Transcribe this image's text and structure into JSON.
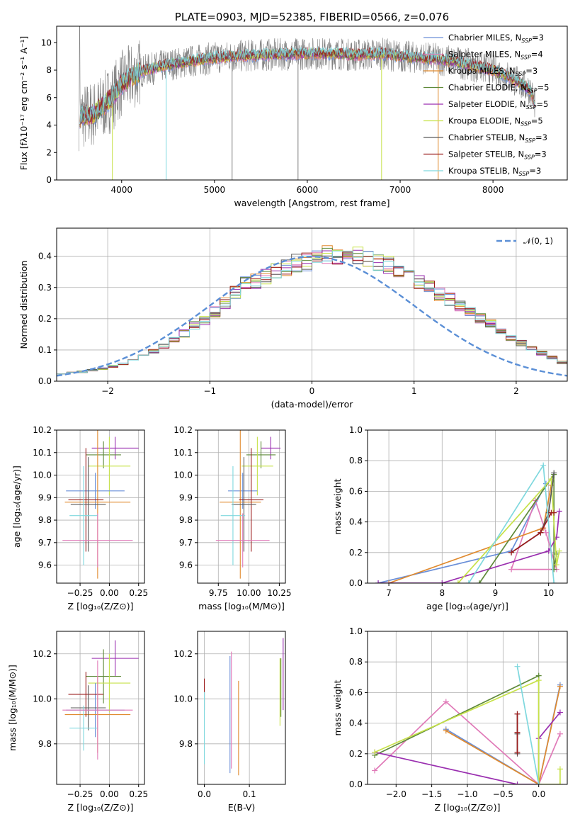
{
  "colors": {
    "Chabrier MILES": "#6a8fd8",
    "Salpeter MILES": "#e07ab8",
    "Kroupa MILES": "#e08a2e",
    "Chabrier ELODIE": "#5f8a3a",
    "Salpeter ELODIE": "#9a2fb0",
    "Kroupa ELODIE": "#c7e24a",
    "Chabrier STELIB": "#5a5a5a",
    "Salpeter STELIB": "#9b1c1c",
    "Kroupa STELIB": "#7fd8de",
    "data": "#808080",
    "normal": "#5b8fd6"
  },
  "chart_data": [
    {
      "type": "line",
      "title": "PLATE=0903, MJD=52385, FIBERID=0566, z=0.076",
      "xlabel": "wavelength [Angstrom, rest frame]",
      "ylabel": "Flux [fλ10⁻¹⁷ erg cm⁻² s⁻¹ A⁻¹]",
      "xlim": [
        3300,
        8800
      ],
      "ylim": [
        0,
        11.2
      ],
      "xticks": [
        4000,
        5000,
        6000,
        7000,
        8000
      ],
      "yticks": [
        0,
        2,
        4,
        6,
        8,
        10
      ],
      "grid": false,
      "legend_position": "right",
      "legend": [
        {
          "label": "Chabrier MILES, N",
          "sub": "SSP",
          "tail": "=3"
        },
        {
          "label": "Salpeter MILES, N",
          "sub": "SSP",
          "tail": "=4"
        },
        {
          "label": "Kroupa MILES, N",
          "sub": "SSP",
          "tail": "=3"
        },
        {
          "label": "Chabrier ELODIE, N",
          "sub": "SSP",
          "tail": "=5"
        },
        {
          "label": "Salpeter ELODIE, N",
          "sub": "SSP",
          "tail": "=5"
        },
        {
          "label": "Kroupa ELODIE, N",
          "sub": "SSP",
          "tail": "=5"
        },
        {
          "label": "Chabrier STELIB, N",
          "sub": "SSP",
          "tail": "=3"
        },
        {
          "label": "Salpeter STELIB, N",
          "sub": "SSP",
          "tail": "=3"
        },
        {
          "label": "Kroupa STELIB, N",
          "sub": "SSP",
          "tail": "=3"
        }
      ],
      "continuum": {
        "x": [
          3550,
          3700,
          3800,
          3900,
          4000,
          4200,
          4500,
          4800,
          5000,
          5200,
          5500,
          6000,
          6300,
          6500,
          6800,
          7000,
          7200,
          7400,
          7600,
          7800,
          8000,
          8200,
          8400,
          8450
        ],
        "y": [
          4.6,
          4.8,
          5.4,
          6.0,
          7.0,
          7.9,
          8.4,
          8.7,
          8.9,
          9.0,
          9.1,
          9.2,
          9.2,
          9.1,
          9.2,
          9.0,
          8.9,
          8.8,
          8.6,
          8.3,
          8.0,
          7.4,
          6.6,
          5.6
        ]
      }
    },
    {
      "type": "bar",
      "subtype": "step histogram",
      "xlabel": "(data-model)/error",
      "ylabel": "Normed distribution",
      "xlim": [
        -2.5,
        2.5
      ],
      "ylim": [
        0,
        0.49
      ],
      "xticks": [
        -2,
        -1,
        0,
        1,
        2
      ],
      "yticks": [
        0.0,
        0.1,
        0.2,
        0.3,
        0.4
      ],
      "grid": true,
      "legend_position": "top-right",
      "legend": [
        "𝒩(0, 1)"
      ],
      "bin_edges_start": -2.5,
      "bin_width": 0.1,
      "base_values": [
        0.025,
        0.028,
        0.03,
        0.035,
        0.04,
        0.048,
        0.057,
        0.066,
        0.079,
        0.095,
        0.11,
        0.13,
        0.153,
        0.178,
        0.196,
        0.222,
        0.252,
        0.283,
        0.31,
        0.32,
        0.335,
        0.352,
        0.362,
        0.378,
        0.384,
        0.395,
        0.405,
        0.4,
        0.398,
        0.402,
        0.395,
        0.38,
        0.372,
        0.355,
        0.345,
        0.32,
        0.3,
        0.28,
        0.262,
        0.24,
        0.22,
        0.2,
        0.182,
        0.16,
        0.141,
        0.122,
        0.108,
        0.09,
        0.075,
        0.06,
        0.05,
        0.04,
        0.032,
        0.027,
        0.023
      ]
    },
    {
      "type": "scatter",
      "subtype": "error bars",
      "xlabel": "Z [log₁₀(Z/Z⊙)]",
      "ylabel": "age  [log₁₀(age/yr)]",
      "xlim": [
        -0.45,
        0.3
      ],
      "ylim": [
        9.52,
        10.2
      ],
      "xticks": [
        -0.25,
        0.0,
        0.25
      ],
      "yticks": [
        9.6,
        9.7,
        9.8,
        9.9,
        10.0,
        10.1,
        10.2
      ],
      "grid": true,
      "points": [
        {
          "series": "Salpeter ELODIE",
          "x": 0.05,
          "xerr": 0.2,
          "y": 10.12,
          "yerr": 0.05
        },
        {
          "series": "Chabrier ELODIE",
          "x": -0.05,
          "xerr": 0.15,
          "y": 10.09,
          "yerr": 0.06
        },
        {
          "series": "Kroupa ELODIE",
          "x": 0.0,
          "xerr": 0.18,
          "y": 10.04,
          "yerr": 0.13
        },
        {
          "series": "Chabrier MILES",
          "x": -0.12,
          "xerr": 0.25,
          "y": 9.93,
          "yerr": 0.08
        },
        {
          "series": "Kroupa MILES",
          "x": -0.1,
          "xerr": 0.28,
          "y": 9.88,
          "yerr": 0.34
        },
        {
          "series": "Salpeter STELIB",
          "x": -0.2,
          "xerr": 0.15,
          "y": 9.89,
          "yerr": 0.23
        },
        {
          "series": "Chabrier STELIB",
          "x": -0.18,
          "xerr": 0.15,
          "y": 9.87,
          "yerr": 0.21
        },
        {
          "series": "Kroupa STELIB",
          "x": -0.22,
          "xerr": 0.12,
          "y": 9.82,
          "yerr": 0.22
        },
        {
          "series": "Salpeter MILES",
          "x": -0.1,
          "xerr": 0.3,
          "y": 9.71,
          "yerr": 0.12
        }
      ]
    },
    {
      "type": "scatter",
      "subtype": "error bars",
      "xlabel": "mass [log₁₀(M/M⊙)]",
      "ylabel": "",
      "xlim": [
        9.58,
        10.3
      ],
      "ylim": [
        9.52,
        10.2
      ],
      "xticks": [
        9.75,
        10.0,
        10.25
      ],
      "yticks": [
        9.6,
        9.7,
        9.8,
        9.9,
        10.0,
        10.1,
        10.2
      ],
      "grid": true,
      "points": [
        {
          "series": "Salpeter ELODIE",
          "x": 10.18,
          "xerr": 0.08,
          "y": 10.12,
          "yerr": 0.05
        },
        {
          "series": "Chabrier ELODIE",
          "x": 10.1,
          "xerr": 0.12,
          "y": 10.09,
          "yerr": 0.06
        },
        {
          "series": "Kroupa ELODIE",
          "x": 10.07,
          "xerr": 0.13,
          "y": 10.04,
          "yerr": 0.13
        },
        {
          "series": "Chabrier MILES",
          "x": 9.95,
          "xerr": 0.12,
          "y": 9.93,
          "yerr": 0.08
        },
        {
          "series": "Kroupa MILES",
          "x": 9.93,
          "xerr": 0.17,
          "y": 9.88,
          "yerr": 0.34
        },
        {
          "series": "Salpeter STELIB",
          "x": 10.02,
          "xerr": 0.1,
          "y": 9.89,
          "yerr": 0.23
        },
        {
          "series": "Chabrier STELIB",
          "x": 9.96,
          "xerr": 0.1,
          "y": 9.87,
          "yerr": 0.21
        },
        {
          "series": "Kroupa STELIB",
          "x": 9.87,
          "xerr": 0.1,
          "y": 9.82,
          "yerr": 0.22
        },
        {
          "series": "Salpeter MILES",
          "x": 9.95,
          "xerr": 0.22,
          "y": 9.71,
          "yerr": 0.12
        }
      ]
    },
    {
      "type": "line",
      "xlabel": "age  [log₁₀(age/yr)]",
      "ylabel": "mass weight",
      "xlim": [
        6.6,
        10.35
      ],
      "ylim": [
        0,
        1.0
      ],
      "xticks": [
        7,
        8,
        9,
        10
      ],
      "yticks": [
        0.0,
        0.2,
        0.4,
        0.6,
        0.8,
        1.0
      ],
      "grid": true,
      "series": [
        {
          "name": "Chabrier MILES",
          "x": [
            6.8,
            9.3,
            9.95
          ],
          "y": [
            0.0,
            0.21,
            0.65
          ]
        },
        {
          "name": "Salpeter MILES",
          "x": [
            9.3,
            9.75,
            9.95,
            10.15,
            9.3
          ],
          "y": [
            0.09,
            0.54,
            0.33,
            0.09,
            0.09
          ]
        },
        {
          "name": "Kroupa MILES",
          "x": [
            7.0,
            9.9,
            10.05
          ],
          "y": [
            0.0,
            0.36,
            0.64
          ]
        },
        {
          "name": "Chabrier ELODIE",
          "x": [
            8.7,
            10.1,
            10.1,
            10.15
          ],
          "y": [
            0.0,
            0.71,
            0.09,
            0.19
          ]
        },
        {
          "name": "Salpeter ELODIE",
          "x": [
            6.8,
            8.0,
            10.0,
            10.15,
            10.2
          ],
          "y": [
            0.0,
            0.0,
            0.21,
            0.3,
            0.47
          ]
        },
        {
          "name": "Kroupa ELODIE",
          "x": [
            8.3,
            10.05,
            10.15,
            10.2
          ],
          "y": [
            0.0,
            0.68,
            0.12,
            0.21
          ]
        },
        {
          "name": "Chabrier STELIB",
          "x": [
            9.3,
            9.85,
            10.0,
            10.1
          ],
          "y": [
            0.2,
            0.33,
            0.46,
            0.72
          ]
        },
        {
          "name": "Salpeter STELIB",
          "x": [
            9.3,
            9.85,
            10.05,
            10.1
          ],
          "y": [
            0.2,
            0.33,
            0.46,
            0.46
          ]
        },
        {
          "name": "Kroupa STELIB",
          "x": [
            8.5,
            9.9,
            10.1
          ],
          "y": [
            0.0,
            0.77,
            0.0
          ]
        }
      ]
    },
    {
      "type": "scatter",
      "subtype": "error bars",
      "xlabel": "Z [log₁₀(Z/Z⊙)]",
      "ylabel": "mass [log₁₀(M/M⊙)]",
      "xlim": [
        -0.45,
        0.3
      ],
      "ylim": [
        9.62,
        10.3
      ],
      "xticks": [
        -0.25,
        0.0,
        0.25
      ],
      "yticks": [
        9.8,
        10.0,
        10.2
      ],
      "grid": true,
      "points": [
        {
          "series": "Salpeter ELODIE",
          "x": 0.05,
          "xerr": 0.2,
          "y": 10.18,
          "yerr": 0.08
        },
        {
          "series": "Chabrier ELODIE",
          "x": -0.05,
          "xerr": 0.15,
          "y": 10.1,
          "yerr": 0.12
        },
        {
          "series": "Kroupa ELODIE",
          "x": 0.0,
          "xerr": 0.18,
          "y": 10.07,
          "yerr": 0.13
        },
        {
          "series": "Chabrier MILES",
          "x": -0.12,
          "xerr": 0.25,
          "y": 9.95,
          "yerr": 0.12
        },
        {
          "series": "Kroupa MILES",
          "x": -0.1,
          "xerr": 0.28,
          "y": 9.93,
          "yerr": 0.17
        },
        {
          "series": "Salpeter STELIB",
          "x": -0.2,
          "xerr": 0.15,
          "y": 10.02,
          "yerr": 0.1
        },
        {
          "series": "Chabrier STELIB",
          "x": -0.18,
          "xerr": 0.15,
          "y": 9.96,
          "yerr": 0.1
        },
        {
          "series": "Kroupa STELIB",
          "x": -0.22,
          "xerr": 0.12,
          "y": 9.87,
          "yerr": 0.1
        },
        {
          "series": "Salpeter MILES",
          "x": -0.1,
          "xerr": 0.3,
          "y": 9.95,
          "yerr": 0.22
        }
      ]
    },
    {
      "type": "scatter",
      "subtype": "error bars",
      "xlabel": "E(B-V)",
      "ylabel": "",
      "xlim": [
        -0.015,
        0.18
      ],
      "ylim": [
        9.62,
        10.3
      ],
      "xticks": [
        0.0,
        0.1
      ],
      "yticks": [
        9.8,
        10.0,
        10.2
      ],
      "grid": true,
      "points": [
        {
          "series": "Salpeter STELIB",
          "x": 0.0,
          "y": 10.02,
          "yerr": 0.07
        },
        {
          "series": "Kroupa STELIB",
          "x": 0.0,
          "y": 9.87,
          "yerr": 0.16
        },
        {
          "series": "Chabrier MILES",
          "x": 0.057,
          "y": 9.93,
          "yerr": 0.26
        },
        {
          "series": "Salpeter MILES",
          "x": 0.06,
          "y": 9.95,
          "yerr": 0.26
        },
        {
          "series": "Kroupa MILES",
          "x": 0.076,
          "y": 9.87,
          "yerr": 0.21
        },
        {
          "series": "Chabrier ELODIE",
          "x": 0.17,
          "y": 10.05,
          "yerr": 0.13
        },
        {
          "series": "Kroupa ELODIE",
          "x": 0.168,
          "y": 10.03,
          "yerr": 0.15
        },
        {
          "series": "Salpeter ELODIE",
          "x": 0.175,
          "y": 10.11,
          "yerr": 0.16
        }
      ]
    },
    {
      "type": "line",
      "xlabel": "Z [log₁₀(Z/Z⊙)]",
      "ylabel": "mass weight",
      "xlim": [
        -2.4,
        0.4
      ],
      "ylim": [
        0,
        1.0
      ],
      "xticks": [
        -2.0,
        -1.5,
        -1.0,
        -0.5,
        0.0
      ],
      "yticks": [
        0.0,
        0.2,
        0.4,
        0.6,
        0.8,
        1.0
      ],
      "grid": true,
      "series": [
        {
          "name": "Chabrier MILES",
          "x": [
            -1.3,
            0.0,
            0.3
          ],
          "y": [
            0.36,
            0.0,
            0.65
          ]
        },
        {
          "name": "Salpeter MILES",
          "x": [
            -2.3,
            -1.3,
            0.0,
            0.3
          ],
          "y": [
            0.09,
            0.54,
            0.0,
            0.33
          ]
        },
        {
          "name": "Kroupa MILES",
          "x": [
            -1.3,
            0.0,
            0.3
          ],
          "y": [
            0.35,
            0.0,
            0.64
          ]
        },
        {
          "name": "Chabrier ELODIE",
          "x": [
            -2.3,
            0.0,
            0.0
          ],
          "y": [
            0.19,
            0.71,
            0.0
          ]
        },
        {
          "name": "Salpeter ELODIE",
          "x": [
            -2.3,
            -0.3,
            0.0,
            0.0,
            0.3
          ],
          "y": [
            0.21,
            0.0,
            0.0,
            0.3,
            0.47
          ]
        },
        {
          "name": "Kroupa ELODIE",
          "x": [
            -2.3,
            0.0,
            0.0,
            0.3,
            0.3
          ],
          "y": [
            0.21,
            0.68,
            0.0,
            0.0,
            0.1
          ]
        },
        {
          "name": "Chabrier STELIB",
          "x": [
            -0.3,
            -0.3,
            -0.3
          ],
          "y": [
            0.2,
            0.33,
            0.46
          ]
        },
        {
          "name": "Salpeter STELIB",
          "x": [
            -0.3,
            -0.3,
            -0.3
          ],
          "y": [
            0.21,
            0.34,
            0.46
          ]
        },
        {
          "name": "Kroupa STELIB",
          "x": [
            -0.3,
            0.0
          ],
          "y": [
            0.77,
            0.0
          ]
        }
      ]
    }
  ]
}
